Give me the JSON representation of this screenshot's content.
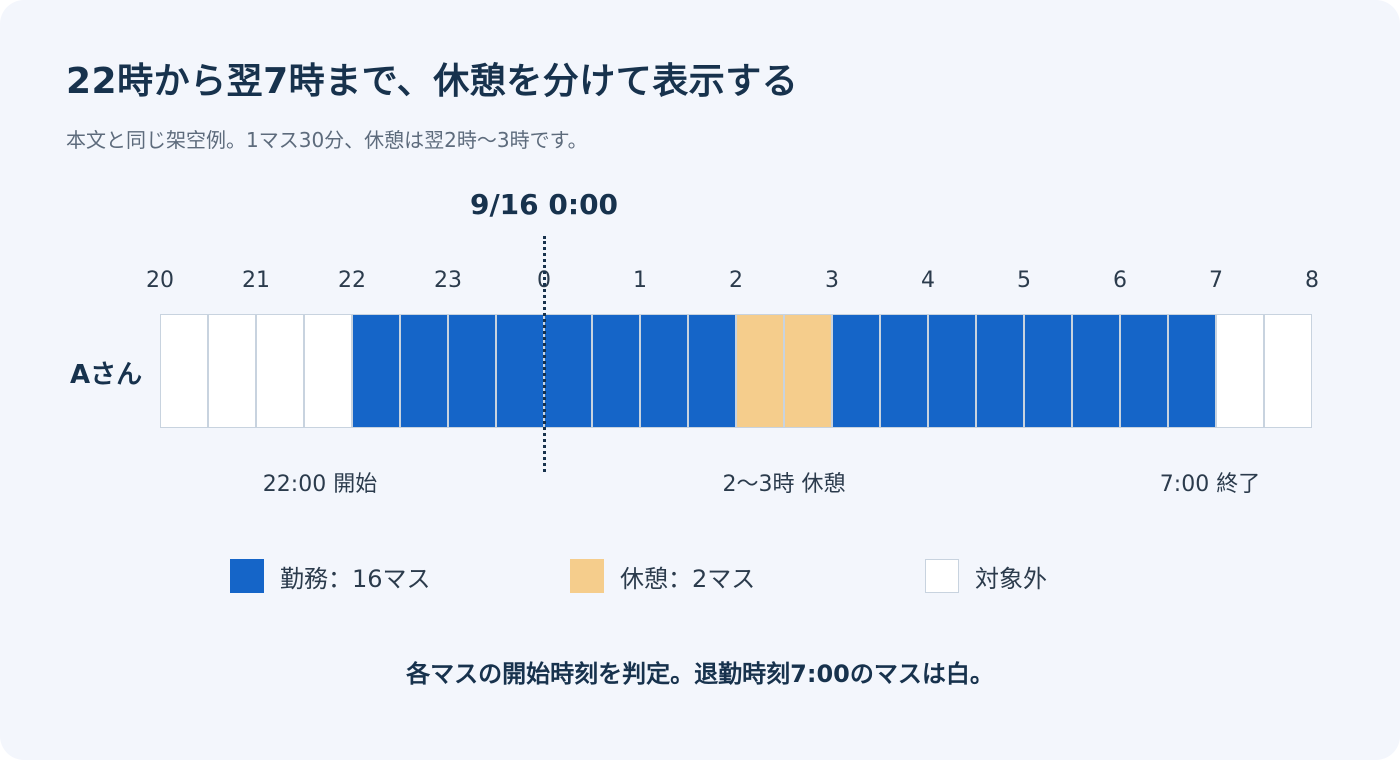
{
  "title": "22時から翌7時まで、休憩を分けて表示する",
  "subtitle": "本文と同じ架空例。1マス30分、休憩は翌2時〜3時です。",
  "marker_label": "9/16 0:00",
  "hour_labels": [
    "20",
    "21",
    "22",
    "23",
    "0",
    "1",
    "2",
    "3",
    "4",
    "5",
    "6",
    "7",
    "8"
  ],
  "row_label": "Aさん",
  "cells": [
    "off",
    "off",
    "off",
    "off",
    "work",
    "work",
    "work",
    "work",
    "work",
    "work",
    "work",
    "work",
    "break",
    "break",
    "work",
    "work",
    "work",
    "work",
    "work",
    "work",
    "work",
    "work",
    "off",
    "off"
  ],
  "annotations": {
    "start": "22:00 開始",
    "break": "2〜3時 休憩",
    "end": "7:00 終了"
  },
  "legend": {
    "work": "勤務：16マス",
    "break": "休憩：2マス",
    "off": "対象外"
  },
  "colors": {
    "work": "#1565c8",
    "break": "#f5cd8c",
    "off": "#ffffff",
    "text_dark": "#17324d"
  },
  "footer": "各マスの開始時刻を判定。退勤時刻7:00のマスは白。"
}
